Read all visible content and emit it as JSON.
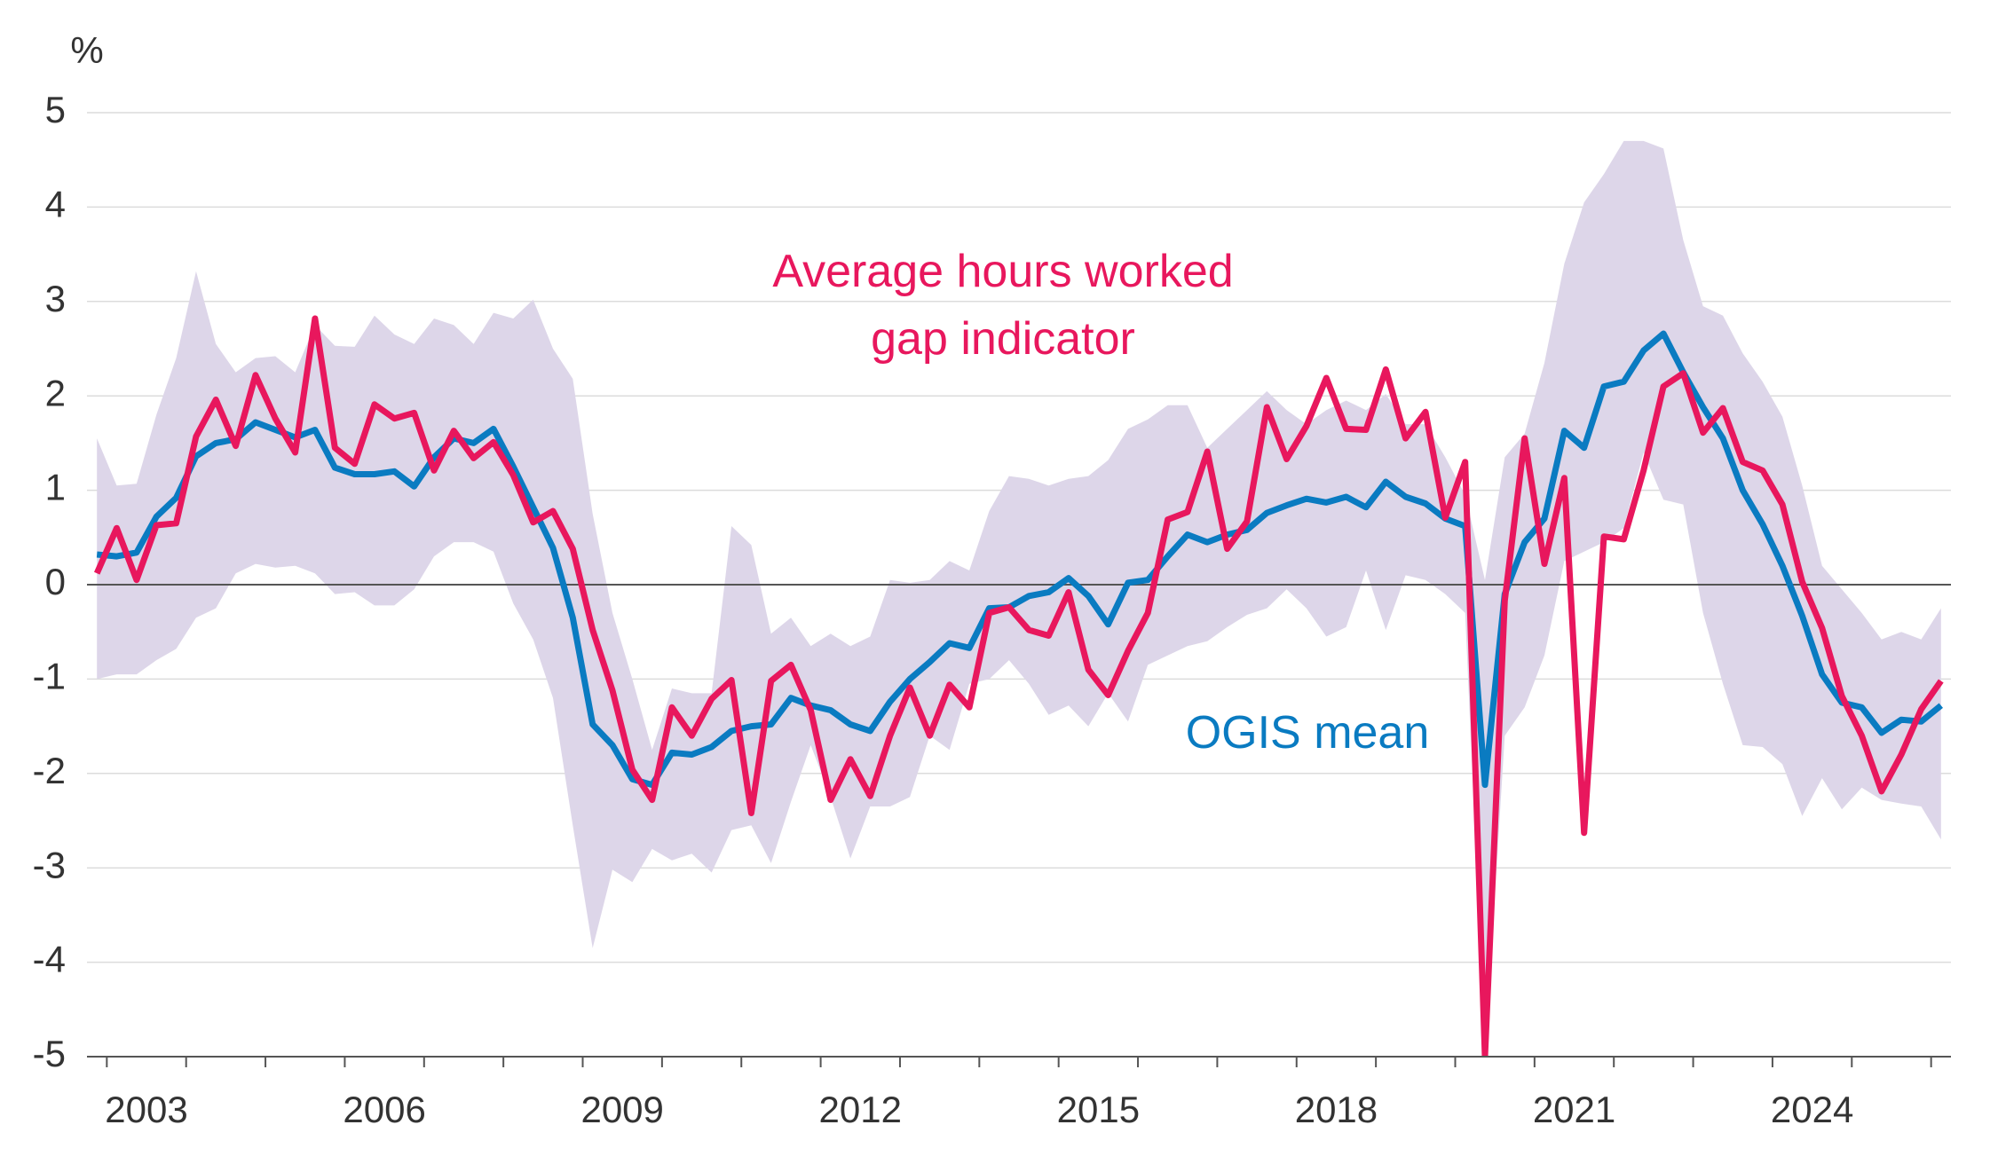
{
  "chart_data": {
    "type": "line",
    "y_unit": "%",
    "xlim": [
      2002.75,
      2026.25
    ],
    "xticks": [
      2003,
      2006,
      2009,
      2012,
      2015,
      2018,
      2021,
      2024
    ],
    "x_minor_ticks": [
      2003,
      2004,
      2005,
      2006,
      2007,
      2008,
      2009,
      2010,
      2011,
      2012,
      2013,
      2014,
      2015,
      2016,
      2017,
      2018,
      2019,
      2020,
      2021,
      2022,
      2023,
      2024,
      2025,
      2026
    ],
    "ylim": [
      -5,
      5
    ],
    "yticks": [
      -5,
      -4,
      -3,
      -2,
      -1,
      0,
      1,
      2,
      3,
      4,
      5
    ],
    "grid": true,
    "zero_line": true,
    "x": [
      2002.875,
      2003.125,
      2003.375,
      2003.625,
      2003.875,
      2004.125,
      2004.375,
      2004.625,
      2004.875,
      2005.125,
      2005.375,
      2005.625,
      2005.875,
      2006.125,
      2006.375,
      2006.625,
      2006.875,
      2007.125,
      2007.375,
      2007.625,
      2007.875,
      2008.125,
      2008.375,
      2008.625,
      2008.875,
      2009.125,
      2009.375,
      2009.625,
      2009.875,
      2010.125,
      2010.375,
      2010.625,
      2010.875,
      2011.125,
      2011.375,
      2011.625,
      2011.875,
      2012.125,
      2012.375,
      2012.625,
      2012.875,
      2013.125,
      2013.375,
      2013.625,
      2013.875,
      2014.125,
      2014.375,
      2014.625,
      2014.875,
      2015.125,
      2015.375,
      2015.625,
      2015.875,
      2016.125,
      2016.375,
      2016.625,
      2016.875,
      2017.125,
      2017.375,
      2017.625,
      2017.875,
      2018.125,
      2018.375,
      2018.625,
      2018.875,
      2019.125,
      2019.375,
      2019.625,
      2019.875,
      2020.125,
      2020.375,
      2020.625,
      2020.875,
      2021.125,
      2021.375,
      2021.625,
      2021.875,
      2022.125,
      2022.375,
      2022.625,
      2022.875,
      2023.125,
      2023.375,
      2023.625,
      2023.875,
      2024.125,
      2024.375,
      2024.625,
      2024.875,
      2025.125,
      2025.375,
      2025.625,
      2025.875,
      2026.125
    ],
    "band": {
      "color": "#ddd6e9",
      "upper": [
        1.55,
        1.05,
        1.07,
        1.8,
        2.4,
        3.32,
        2.55,
        2.25,
        2.4,
        2.42,
        2.25,
        2.75,
        2.53,
        2.52,
        2.85,
        2.65,
        2.55,
        2.82,
        2.75,
        2.55,
        2.88,
        2.82,
        3.02,
        2.5,
        2.18,
        0.75,
        -0.3,
        -1.0,
        -1.75,
        -1.1,
        -1.15,
        -1.15,
        0.62,
        0.42,
        -0.52,
        -0.35,
        -0.65,
        -0.52,
        -0.65,
        -0.55,
        0.05,
        0.02,
        0.05,
        0.25,
        0.15,
        0.78,
        1.15,
        1.12,
        1.05,
        1.12,
        1.15,
        1.32,
        1.65,
        1.75,
        1.9,
        1.9,
        1.45,
        1.65,
        1.85,
        2.05,
        1.85,
        1.7,
        1.85,
        1.95,
        1.85,
        2.02,
        1.7,
        1.7,
        1.35,
        0.95,
        0.05,
        1.35,
        1.6,
        2.35,
        3.4,
        4.05,
        4.35,
        4.7,
        4.7,
        4.62,
        3.65,
        2.95,
        2.85,
        2.45,
        2.15,
        1.78,
        1.05,
        0.2,
        -0.05,
        -0.3,
        -0.58,
        -0.5,
        -0.58,
        -0.25
      ],
      "lower": [
        -1.0,
        -0.95,
        -0.95,
        -0.8,
        -0.68,
        -0.35,
        -0.25,
        0.12,
        0.22,
        0.18,
        0.2,
        0.12,
        -0.1,
        -0.08,
        -0.22,
        -0.22,
        -0.05,
        0.3,
        0.45,
        0.45,
        0.35,
        -0.2,
        -0.58,
        -1.2,
        -2.55,
        -3.85,
        -3.02,
        -3.15,
        -2.8,
        -2.92,
        -2.85,
        -3.05,
        -2.6,
        -2.55,
        -2.95,
        -2.3,
        -1.7,
        -2.25,
        -2.9,
        -2.35,
        -2.35,
        -2.25,
        -1.6,
        -1.75,
        -1.05,
        -1.0,
        -0.8,
        -1.05,
        -1.38,
        -1.28,
        -1.5,
        -1.15,
        -1.45,
        -0.85,
        -0.75,
        -0.65,
        -0.6,
        -0.45,
        -0.32,
        -0.25,
        -0.05,
        -0.25,
        -0.55,
        -0.45,
        0.15,
        -0.48,
        0.1,
        0.05,
        -0.1,
        -0.3,
        -5.0,
        -1.6,
        -1.3,
        -0.75,
        0.25,
        0.35,
        0.45,
        0.6,
        1.4,
        0.9,
        0.85,
        -0.3,
        -1.05,
        -1.7,
        -1.72,
        -1.9,
        -2.45,
        -2.05,
        -2.38,
        -2.15,
        -2.28,
        -2.32,
        -2.35,
        -2.7
      ]
    },
    "series": [
      {
        "name": "OGIS mean",
        "color": "#0a7bc1",
        "values": [
          0.32,
          0.3,
          0.34,
          0.72,
          0.92,
          1.36,
          1.5,
          1.54,
          1.72,
          1.64,
          1.56,
          1.64,
          1.24,
          1.17,
          1.17,
          1.2,
          1.04,
          1.35,
          1.55,
          1.5,
          1.65,
          1.25,
          0.82,
          0.39,
          -0.35,
          -1.48,
          -1.7,
          -2.06,
          -2.12,
          -1.78,
          -1.8,
          -1.72,
          -1.55,
          -1.5,
          -1.48,
          -1.2,
          -1.28,
          -1.33,
          -1.48,
          -1.55,
          -1.24,
          -1.0,
          -0.82,
          -0.62,
          -0.67,
          -0.25,
          -0.24,
          -0.12,
          -0.08,
          0.07,
          -0.12,
          -0.42,
          0.02,
          0.05,
          0.3,
          0.53,
          0.45,
          0.53,
          0.58,
          0.76,
          0.84,
          0.91,
          0.87,
          0.93,
          0.82,
          1.09,
          0.93,
          0.86,
          0.7,
          0.62,
          -2.12,
          -0.1,
          0.45,
          0.7,
          1.63,
          1.45,
          2.1,
          2.15,
          2.48,
          2.66,
          2.25,
          1.88,
          1.55,
          1.0,
          0.64,
          0.2,
          -0.33,
          -0.95,
          -1.25,
          -1.3,
          -1.57,
          -1.43,
          -1.45,
          -1.28
        ]
      },
      {
        "name": "Average hours worked gap indicator",
        "color": "#e8175d",
        "values": [
          0.12,
          0.6,
          0.05,
          0.63,
          0.65,
          1.57,
          1.96,
          1.47,
          2.22,
          1.76,
          1.4,
          2.82,
          1.45,
          1.28,
          1.91,
          1.76,
          1.82,
          1.21,
          1.63,
          1.34,
          1.51,
          1.16,
          0.66,
          0.78,
          0.38,
          -0.48,
          -1.12,
          -1.96,
          -2.28,
          -1.3,
          -1.6,
          -1.21,
          -1.01,
          -2.42,
          -1.02,
          -0.85,
          -1.33,
          -2.28,
          -1.85,
          -2.24,
          -1.6,
          -1.09,
          -1.6,
          -1.06,
          -1.3,
          -0.3,
          -0.24,
          -0.48,
          -0.54,
          -0.08,
          -0.9,
          -1.17,
          -0.7,
          -0.3,
          0.69,
          0.77,
          1.41,
          0.38,
          0.67,
          1.88,
          1.33,
          1.68,
          2.19,
          1.65,
          1.64,
          2.28,
          1.55,
          1.83,
          0.71,
          1.3,
          -5.0,
          -0.17,
          1.55,
          0.22,
          1.13,
          -2.63,
          0.51,
          0.48,
          1.21,
          2.1,
          2.24,
          1.61,
          1.87,
          1.3,
          1.21,
          0.85,
          0.03,
          -0.46,
          -1.18,
          -1.6,
          -2.19,
          -1.8,
          -1.32,
          -1.02
        ]
      }
    ]
  }
}
